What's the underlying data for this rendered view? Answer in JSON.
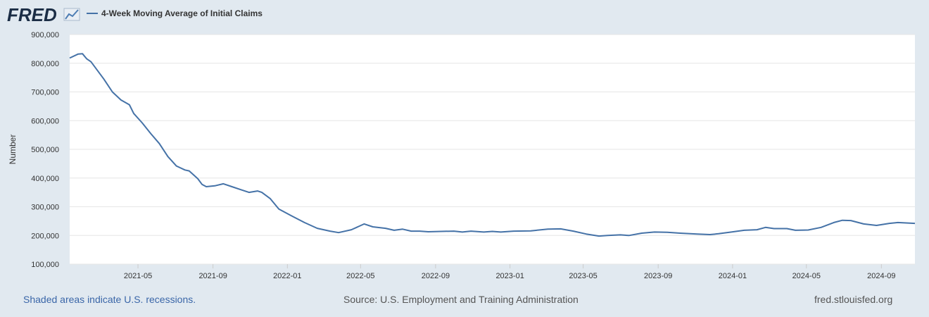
{
  "logo": {
    "text": "FRED"
  },
  "legend": {
    "label": "4-Week Moving Average of Initial Claims"
  },
  "footer": {
    "recession_note": "Shaded areas indicate U.S. recessions.",
    "source": "Source: U.S. Employment and Training Administration",
    "site": "fred.stlouisfed.org"
  },
  "colors": {
    "background": "#e1e9f0",
    "plot_background": "#ffffff",
    "series_line": "#4572a7",
    "grid": "#e6e6e6",
    "text": "#333333",
    "link": "#3a66a8"
  },
  "chart_data": {
    "type": "line",
    "title": "",
    "ylabel": "Number",
    "xlabel": "",
    "ylim": [
      100000,
      900000
    ],
    "xlim": [
      "2021-01-09",
      "2024-10-26"
    ],
    "y_ticks": [
      "100,000",
      "200,000",
      "300,000",
      "400,000",
      "500,000",
      "600,000",
      "700,000",
      "800,000",
      "900,000"
    ],
    "x_ticks": [
      "2021-05",
      "2021-09",
      "2022-01",
      "2022-05",
      "2022-09",
      "2023-01",
      "2023-05",
      "2023-09",
      "2024-01",
      "2024-05",
      "2024-09"
    ],
    "grid": true,
    "legend_position": "top-left",
    "series": [
      {
        "name": "4-Week Moving Average of Initial Claims",
        "points": [
          [
            "2021-01-09",
            818000
          ],
          [
            "2021-01-23",
            832000
          ],
          [
            "2021-01-30",
            833000
          ],
          [
            "2021-02-06",
            815000
          ],
          [
            "2021-02-13",
            805000
          ],
          [
            "2021-03-06",
            745000
          ],
          [
            "2021-03-20",
            700000
          ],
          [
            "2021-04-03",
            672000
          ],
          [
            "2021-04-17",
            655000
          ],
          [
            "2021-04-24",
            625000
          ],
          [
            "2021-05-08",
            592000
          ],
          [
            "2021-05-22",
            555000
          ],
          [
            "2021-06-05",
            520000
          ],
          [
            "2021-06-19",
            475000
          ],
          [
            "2021-07-03",
            442000
          ],
          [
            "2021-07-17",
            428000
          ],
          [
            "2021-07-24",
            425000
          ],
          [
            "2021-08-07",
            398000
          ],
          [
            "2021-08-14",
            378000
          ],
          [
            "2021-08-21",
            370000
          ],
          [
            "2021-09-04",
            373000
          ],
          [
            "2021-09-18",
            380000
          ],
          [
            "2021-10-02",
            370000
          ],
          [
            "2021-10-16",
            360000
          ],
          [
            "2021-10-30",
            350000
          ],
          [
            "2021-11-13",
            355000
          ],
          [
            "2021-11-20",
            350000
          ],
          [
            "2021-12-04",
            328000
          ],
          [
            "2021-12-18",
            292000
          ],
          [
            "2022-01-08",
            268000
          ],
          [
            "2022-01-29",
            245000
          ],
          [
            "2022-02-19",
            225000
          ],
          [
            "2022-03-12",
            215000
          ],
          [
            "2022-03-26",
            210000
          ],
          [
            "2022-04-16",
            220000
          ],
          [
            "2022-05-07",
            240000
          ],
          [
            "2022-05-21",
            230000
          ],
          [
            "2022-06-11",
            225000
          ],
          [
            "2022-06-25",
            218000
          ],
          [
            "2022-07-09",
            222000
          ],
          [
            "2022-07-23",
            215000
          ],
          [
            "2022-08-06",
            215000
          ],
          [
            "2022-08-20",
            213000
          ],
          [
            "2022-09-10",
            214000
          ],
          [
            "2022-10-01",
            215000
          ],
          [
            "2022-10-15",
            212000
          ],
          [
            "2022-10-29",
            215000
          ],
          [
            "2022-11-19",
            212000
          ],
          [
            "2022-12-03",
            214000
          ],
          [
            "2022-12-17",
            212000
          ],
          [
            "2023-01-07",
            215000
          ],
          [
            "2023-02-04",
            216000
          ],
          [
            "2023-03-04",
            222000
          ],
          [
            "2023-03-25",
            223000
          ],
          [
            "2023-04-15",
            215000
          ],
          [
            "2023-05-06",
            205000
          ],
          [
            "2023-05-27",
            198000
          ],
          [
            "2023-06-10",
            200000
          ],
          [
            "2023-07-01",
            202000
          ],
          [
            "2023-07-15",
            200000
          ],
          [
            "2023-08-05",
            208000
          ],
          [
            "2023-08-26",
            212000
          ],
          [
            "2023-09-16",
            211000
          ],
          [
            "2023-10-07",
            208000
          ],
          [
            "2023-11-04",
            205000
          ],
          [
            "2023-11-25",
            203000
          ],
          [
            "2023-12-09",
            206000
          ],
          [
            "2023-12-30",
            212000
          ],
          [
            "2024-01-20",
            218000
          ],
          [
            "2024-02-10",
            220000
          ],
          [
            "2024-02-24",
            228000
          ],
          [
            "2024-03-09",
            224000
          ],
          [
            "2024-03-30",
            224000
          ],
          [
            "2024-04-13",
            218000
          ],
          [
            "2024-05-04",
            219000
          ],
          [
            "2024-05-25",
            228000
          ],
          [
            "2024-06-15",
            245000
          ],
          [
            "2024-06-29",
            253000
          ],
          [
            "2024-07-13",
            252000
          ],
          [
            "2024-08-03",
            240000
          ],
          [
            "2024-08-24",
            235000
          ],
          [
            "2024-09-14",
            242000
          ],
          [
            "2024-09-28",
            245000
          ],
          [
            "2024-10-26",
            242000
          ]
        ]
      }
    ]
  }
}
